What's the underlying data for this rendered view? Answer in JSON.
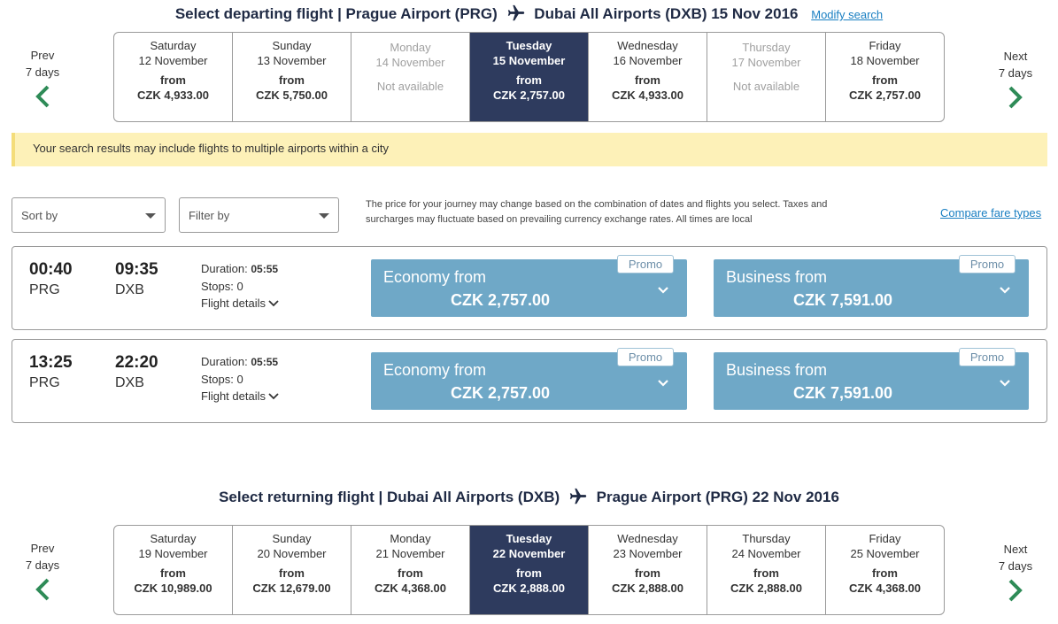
{
  "depart": {
    "title_prefix": "Select departing flight | Prague Airport (PRG)",
    "title_suffix": "Dubai All Airports (DXB) 15 Nov 2016",
    "modify_label": "Modify search",
    "prev": {
      "line1": "Prev",
      "line2": "7 days"
    },
    "next": {
      "line1": "Next",
      "line2": "7 days"
    },
    "days": [
      {
        "name": "Saturday",
        "date": "12 November",
        "from": "from",
        "price": "CZK 4,933.00"
      },
      {
        "name": "Sunday",
        "date": "13 November",
        "from": "from",
        "price": "CZK 5,750.00"
      },
      {
        "name": "Monday",
        "date": "14 November",
        "status": "Not available"
      },
      {
        "name": "Tuesday",
        "date": "15 November",
        "from": "from",
        "price": "CZK 2,757.00",
        "selected": true
      },
      {
        "name": "Wednesday",
        "date": "16 November",
        "from": "from",
        "price": "CZK 4,933.00"
      },
      {
        "name": "Thursday",
        "date": "17 November",
        "status": "Not available"
      },
      {
        "name": "Friday",
        "date": "18 November",
        "from": "from",
        "price": "CZK 2,757.00"
      }
    ]
  },
  "notice": "Your search results may include flights to multiple airports within a city",
  "controls": {
    "sort_label": "Sort by",
    "filter_label": "Filter by",
    "disclaimer_1": "The price for your journey may change based on the combination of dates and flights you select. Taxes and",
    "disclaimer_2": "surcharges may fluctuate based on prevailing currency exchange rates. All times are local",
    "compare_label": "Compare fare types"
  },
  "flights": [
    {
      "dep_time": "00:40",
      "dep_code": "PRG",
      "arr_time": "09:35",
      "arr_code": "DXB",
      "duration_label": "Duration:",
      "duration": "05:55",
      "stops": "Stops: 0",
      "details_label": "Flight details",
      "economy": {
        "label": "Economy from",
        "price": "CZK 2,757.00",
        "promo": "Promo"
      },
      "business": {
        "label": "Business from",
        "price": "CZK 7,591.00",
        "promo": "Promo"
      }
    },
    {
      "dep_time": "13:25",
      "dep_code": "PRG",
      "arr_time": "22:20",
      "arr_code": "DXB",
      "duration_label": "Duration:",
      "duration": "05:55",
      "stops": "Stops: 0",
      "details_label": "Flight details",
      "economy": {
        "label": "Economy from",
        "price": "CZK 2,757.00",
        "promo": "Promo"
      },
      "business": {
        "label": "Business from",
        "price": "CZK 7,591.00",
        "promo": "Promo"
      }
    }
  ],
  "return": {
    "title_prefix": "Select returning flight | Dubai All Airports (DXB)",
    "title_suffix": "Prague Airport (PRG) 22 Nov 2016",
    "prev": {
      "line1": "Prev",
      "line2": "7 days"
    },
    "next": {
      "line1": "Next",
      "line2": "7 days"
    },
    "days": [
      {
        "name": "Saturday",
        "date": "19 November",
        "from": "from",
        "price": "CZK 10,989.00"
      },
      {
        "name": "Sunday",
        "date": "20 November",
        "from": "from",
        "price": "CZK 12,679.00"
      },
      {
        "name": "Monday",
        "date": "21 November",
        "from": "from",
        "price": "CZK 4,368.00"
      },
      {
        "name": "Tuesday",
        "date": "22 November",
        "from": "from",
        "price": "CZK 2,888.00",
        "selected": true
      },
      {
        "name": "Wednesday",
        "date": "23 November",
        "from": "from",
        "price": "CZK 2,888.00"
      },
      {
        "name": "Thursday",
        "date": "24 November",
        "from": "from",
        "price": "CZK 2,888.00"
      },
      {
        "name": "Friday",
        "date": "25 November",
        "from": "from",
        "price": "CZK 4,368.00"
      }
    ]
  },
  "icons": {
    "plane": "plane-icon",
    "prev": "chevron-left-icon",
    "next": "chevron-right-icon",
    "expand": "chevron-down-icon",
    "dropdown": "caret-down-icon"
  },
  "colors": {
    "selected_day": "#2e3b5e",
    "fare_button": "#6fa8c7",
    "arrow_green": "#2e8b57",
    "notice_bg": "#fdf1b8",
    "link": "#1a7fc2"
  }
}
